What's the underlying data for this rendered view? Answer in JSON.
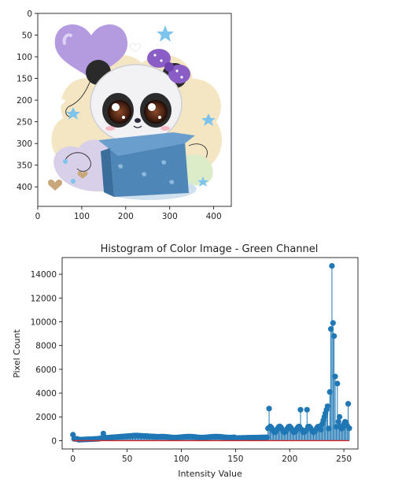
{
  "image_panel": {
    "xticks": [
      "0",
      "100",
      "200",
      "300",
      "400"
    ],
    "yticks": [
      "0",
      "50",
      "100",
      "150",
      "200",
      "250",
      "300",
      "350",
      "400"
    ],
    "xlim": [
      0,
      440
    ],
    "ylim": [
      445,
      0
    ]
  },
  "chart_data": {
    "type": "stem",
    "title": "Histogram of Color Image - Green Channel",
    "xlabel": "Intensity Value",
    "ylabel": "Pixel Count",
    "xlim": [
      -10,
      263
    ],
    "ylim": [
      -700,
      15400
    ],
    "xticks": [
      0,
      50,
      100,
      150,
      200,
      250
    ],
    "yticks": [
      0,
      2000,
      4000,
      6000,
      8000,
      10000,
      12000,
      14000
    ],
    "grid": false,
    "colors": {
      "stem": "#1f77b4",
      "baseline": "#d62728"
    },
    "notable_points": [
      {
        "x": 0,
        "y": 500
      },
      {
        "x": 28,
        "y": 600
      },
      {
        "x": 181,
        "y": 2700
      },
      {
        "x": 210,
        "y": 2600
      },
      {
        "x": 216,
        "y": 2600
      },
      {
        "x": 237,
        "y": 4100
      },
      {
        "x": 238,
        "y": 9400
      },
      {
        "x": 239,
        "y": 14700
      },
      {
        "x": 240,
        "y": 9900
      },
      {
        "x": 241,
        "y": 8800
      },
      {
        "x": 242,
        "y": 5400
      },
      {
        "x": 244,
        "y": 4800
      },
      {
        "x": 246,
        "y": 2000
      },
      {
        "x": 254,
        "y": 3100
      }
    ]
  }
}
